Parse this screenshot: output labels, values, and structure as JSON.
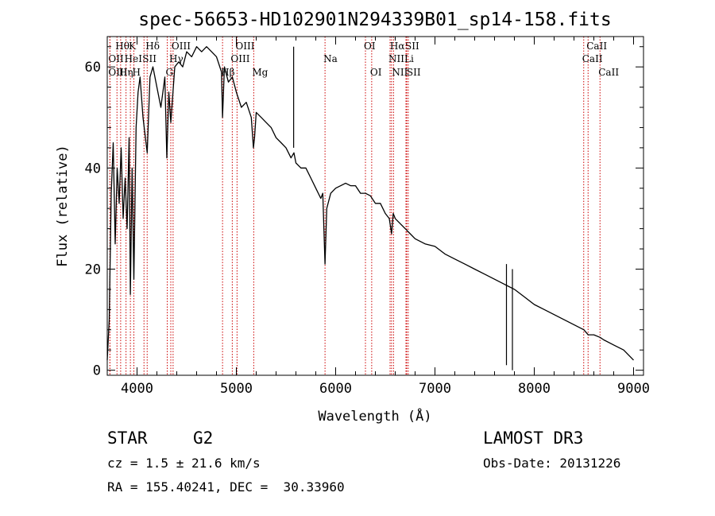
{
  "chart_data": {
    "type": "line",
    "title": "spec-56653-HD102901N294339B01_sp14-158.fits",
    "xlabel": "Wavelength (Å)",
    "ylabel": "Flux (relative)",
    "xlim": [
      3700,
      9100
    ],
    "ylim": [
      -1,
      66
    ],
    "xticks": [
      4000,
      5000,
      6000,
      7000,
      8000,
      9000
    ],
    "yticks": [
      0,
      20,
      40,
      60
    ],
    "grid": false,
    "series": [
      {
        "x": [
          3700,
          3720,
          3740,
          3760,
          3780,
          3800,
          3820,
          3840,
          3860,
          3880,
          3900,
          3920,
          3933,
          3950,
          3968,
          3990,
          4010,
          4030,
          4060,
          4102,
          4130,
          4160,
          4200,
          4240,
          4280,
          4300,
          4320,
          4340,
          4380,
          4420,
          4460,
          4500,
          4550,
          4600,
          4650,
          4700,
          4750,
          4800,
          4850,
          4861,
          4880,
          4920,
          4960,
          5000,
          5050,
          5100,
          5150,
          5172,
          5183,
          5200,
          5250,
          5300,
          5350,
          5400,
          5450,
          5500,
          5550,
          5580,
          5600,
          5650,
          5700,
          5750,
          5800,
          5850,
          5870,
          5893,
          5910,
          5950,
          6000,
          6050,
          6100,
          6150,
          6200,
          6250,
          6300,
          6350,
          6400,
          6450,
          6500,
          6540,
          6563,
          6580,
          6600,
          6650,
          6700,
          6750,
          6800,
          6900,
          7000,
          7100,
          7200,
          7300,
          7400,
          7500,
          7600,
          7700,
          7800,
          7900,
          8000,
          8100,
          8200,
          8300,
          8400,
          8500,
          8542,
          8600,
          8662,
          8700,
          8800,
          8900,
          9000
        ],
        "y": [
          2,
          10,
          35,
          45,
          25,
          40,
          33,
          44,
          30,
          38,
          28,
          46,
          15,
          40,
          18,
          48,
          55,
          58,
          50,
          43,
          58,
          60,
          56,
          52,
          58,
          42,
          55,
          49,
          60,
          61,
          60,
          63,
          62,
          64,
          63,
          64,
          63,
          62,
          59,
          50,
          60,
          57,
          58,
          55,
          52,
          53,
          50,
          44,
          46,
          51,
          50,
          49,
          48,
          46,
          45,
          44,
          42,
          43,
          41,
          40,
          40,
          38,
          36,
          34,
          35,
          21,
          32,
          35,
          36,
          36.5,
          37,
          36.5,
          36.5,
          35,
          35,
          34.5,
          33,
          33,
          31,
          30,
          27,
          31,
          30,
          29,
          28,
          27,
          26,
          25,
          24.5,
          23,
          22,
          21,
          20,
          19,
          18,
          17,
          16,
          14.5,
          13,
          12,
          11,
          10,
          9,
          8,
          7,
          7,
          6.5,
          6,
          5,
          4,
          2
        ]
      }
    ],
    "spikes": [
      {
        "x": 5577,
        "y": 64
      },
      {
        "x": 7780,
        "y": 20
      },
      {
        "x": 7720,
        "y": 21
      }
    ],
    "line_markers": [
      {
        "label": "Hθ",
        "wavelength": 3798,
        "row": 1
      },
      {
        "label": "OII",
        "wavelength": 3727,
        "row": 2
      },
      {
        "label": "OIII",
        "wavelength": 3727,
        "row": 3
      },
      {
        "label": "K",
        "wavelength": 3933,
        "row": 1
      },
      {
        "label": "HeI",
        "wavelength": 3889,
        "row": 2
      },
      {
        "label": "Hη",
        "wavelength": 3835,
        "row": 3
      },
      {
        "label": "Hδ",
        "wavelength": 4102,
        "row": 1
      },
      {
        "label": "SII",
        "wavelength": 4070,
        "row": 2
      },
      {
        "label": "H",
        "wavelength": 3968,
        "row": 3
      },
      {
        "label": "OIII",
        "wavelength": 4363,
        "row": 1
      },
      {
        "label": "Hγ",
        "wavelength": 4340,
        "row": 2
      },
      {
        "label": "G",
        "wavelength": 4304,
        "row": 3
      },
      {
        "label": "OIII",
        "wavelength": 5007,
        "row": 1
      },
      {
        "label": "OIII",
        "wavelength": 4959,
        "row": 2
      },
      {
        "label": "Hβ",
        "wavelength": 4861,
        "row": 3
      },
      {
        "label": "Mg",
        "wavelength": 5175,
        "row": 3
      },
      {
        "label": "Na",
        "wavelength": 5893,
        "row": 2
      },
      {
        "label": "OI",
        "wavelength": 6300,
        "row": 1
      },
      {
        "label": "OI",
        "wavelength": 6363,
        "row": 3
      },
      {
        "label": "Hα",
        "wavelength": 6563,
        "row": 1
      },
      {
        "label": "SII",
        "wavelength": 6716,
        "row": 1
      },
      {
        "label": "NII",
        "wavelength": 6548,
        "row": 2
      },
      {
        "label": "Li",
        "wavelength": 6708,
        "row": 2
      },
      {
        "label": "NII",
        "wavelength": 6583,
        "row": 3
      },
      {
        "label": "SII",
        "wavelength": 6731,
        "row": 3
      },
      {
        "label": "CaII",
        "wavelength": 8542,
        "row": 1
      },
      {
        "label": "CaII",
        "wavelength": 8498,
        "row": 2
      },
      {
        "label": "CaII",
        "wavelength": 8662,
        "row": 3
      }
    ],
    "colors": {
      "spectrum": "#000000",
      "marker_line": "#cc0000",
      "text": "#000000"
    }
  },
  "footer": {
    "object_class": "STAR",
    "subclass": "G2",
    "survey": "LAMOST DR3",
    "cz": "cz = 1.5 ± 21.6 km/s",
    "obs_date": "Obs-Date: 20131226",
    "radec": "RA = 155.40241, DEC =  30.33960"
  }
}
